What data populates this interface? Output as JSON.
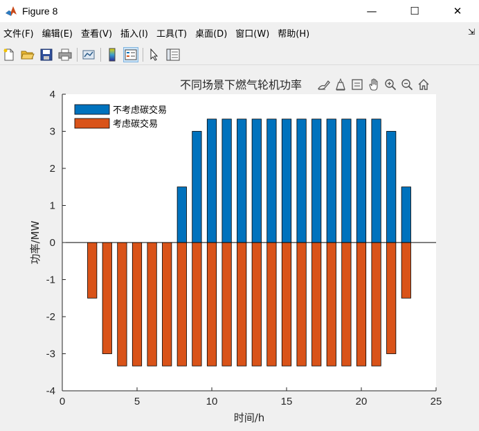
{
  "window": {
    "title": "Figure 8",
    "controls": {
      "minimize": "—",
      "maximize": "☐",
      "close": "✕"
    }
  },
  "menu": {
    "items": [
      "文件(F)",
      "编辑(E)",
      "查看(V)",
      "插入(I)",
      "工具(T)",
      "桌面(D)",
      "窗口(W)",
      "帮助(H)"
    ],
    "overflow": "⇲"
  },
  "toolbar": {
    "buttons": [
      "new-figure-icon",
      "open-folder-icon",
      "save-icon",
      "print-icon",
      "link-plot-icon",
      "insert-colorbar-icon",
      "insert-legend-icon",
      "pointer-icon",
      "property-inspector-icon"
    ]
  },
  "colors": {
    "series_1": "#0072BD",
    "series_2": "#D95319",
    "axes_bg": "#ffffff",
    "figure_bg": "#f0f0f0"
  },
  "chart_data": {
    "type": "bar",
    "title": "不同场景下燃气轮机功率",
    "xlabel": "时间/h",
    "ylabel": "功率/MW",
    "xlim": [
      0,
      25
    ],
    "ylim": [
      -4,
      4
    ],
    "xticks": [
      0,
      5,
      10,
      15,
      20,
      25
    ],
    "yticks": [
      -4,
      -3,
      -2,
      -1,
      0,
      1,
      2,
      3,
      4
    ],
    "grid": false,
    "legend": "top-left",
    "series": [
      {
        "name": "不考虑碳交易",
        "x": [
          8,
          9,
          10,
          11,
          12,
          13,
          14,
          15,
          16,
          17,
          18,
          19,
          20,
          21,
          22,
          23
        ],
        "values": [
          1.5,
          3.0,
          3.33,
          3.33,
          3.33,
          3.33,
          3.33,
          3.33,
          3.33,
          3.33,
          3.33,
          3.33,
          3.33,
          3.33,
          3.0,
          1.5
        ]
      },
      {
        "name": "考虑碳交易",
        "x": [
          2,
          3,
          4,
          5,
          6,
          7,
          8,
          9,
          10,
          11,
          12,
          13,
          14,
          15,
          16,
          17,
          18,
          19,
          20,
          21,
          22,
          23
        ],
        "values": [
          -1.5,
          -3.0,
          -3.33,
          -3.33,
          -3.33,
          -3.33,
          -3.33,
          -3.33,
          -3.33,
          -3.33,
          -3.33,
          -3.33,
          -3.33,
          -3.33,
          -3.33,
          -3.33,
          -3.33,
          -3.33,
          -3.33,
          -3.33,
          -3.0,
          -1.5
        ]
      }
    ]
  }
}
